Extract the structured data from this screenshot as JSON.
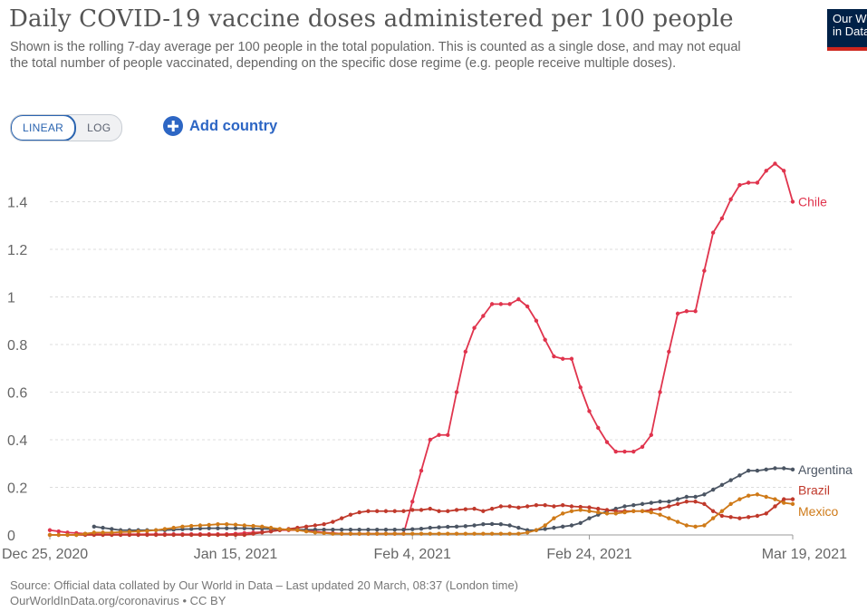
{
  "header": {
    "title": "Daily COVID-19 vaccine doses administered per 100 people",
    "subtitle": "Shown is the rolling 7-day average per 100 people in the total population. This is counted as a single dose, and may not equal the total number of people vaccinated, depending on the specific dose regime (e.g. people receive multiple doses).",
    "logo_line1": "Our World",
    "logo_line2": "in Data"
  },
  "controls": {
    "linear_label": "LINEAR",
    "log_label": "LOG",
    "active_scale": "linear",
    "add_country_label": "Add country",
    "add_icon": "plus-circle-icon"
  },
  "footer": {
    "source_line1": "Source: Official data collated by Our World in Data – Last updated 20 March, 08:37 (London time)",
    "source_line2": "OurWorldInData.org/coronavirus • CC BY"
  },
  "chart_data": {
    "type": "line",
    "title": "Daily COVID-19 vaccine doses administered per 100 people",
    "ylim": [
      0,
      1.6
    ],
    "y_ticks": [
      0,
      0.2,
      0.4,
      0.6,
      0.8,
      1,
      1.2,
      1.4
    ],
    "y_tick_labels": [
      "0",
      "0.2",
      "0.4",
      "0.6",
      "0.8",
      "1",
      "1.2",
      "1.4"
    ],
    "x_tick_labels": [
      "Dec 25, 2020",
      "Jan 15, 2021",
      "Feb 4, 2021",
      "Feb 24, 2021",
      "Mar 19, 2021"
    ],
    "x_tick_days": [
      0,
      21,
      41,
      61,
      84
    ],
    "xlim_days": [
      0,
      84
    ],
    "grid": true,
    "legend": "inline labels at line ends (right)",
    "series": [
      {
        "name": "Chile",
        "color": "#e0344d",
        "start_day": 0,
        "values": [
          0.02,
          0.015,
          0.01,
          0.008,
          0.005,
          0.004,
          0.003,
          0.003,
          0.003,
          0.003,
          0.003,
          0.003,
          0.003,
          0.003,
          0.003,
          0.003,
          0.003,
          0.003,
          0.003,
          0.003,
          0.003,
          0.005,
          0.008,
          0.01,
          0.012,
          0.015,
          0.02,
          0.02,
          0.02,
          0.02,
          0.015,
          0.01,
          0.008,
          0.005,
          0.005,
          0.005,
          0.005,
          0.005,
          0.005,
          0.005,
          0.005,
          0.14,
          0.27,
          0.4,
          0.42,
          0.42,
          0.6,
          0.77,
          0.87,
          0.92,
          0.97,
          0.97,
          0.97,
          0.99,
          0.96,
          0.9,
          0.82,
          0.75,
          0.74,
          0.74,
          0.62,
          0.52,
          0.45,
          0.39,
          0.35,
          0.35,
          0.35,
          0.37,
          0.42,
          0.6,
          0.77,
          0.93,
          0.94,
          0.94,
          1.11,
          1.27,
          1.33,
          1.41,
          1.47,
          1.48,
          1.48,
          1.53,
          1.56,
          1.53,
          1.4
        ]
      },
      {
        "name": "Argentina",
        "color": "#4b5563",
        "start_day": 5,
        "values": [
          0.035,
          0.03,
          0.025,
          0.02,
          0.02,
          0.02,
          0.02,
          0.02,
          0.02,
          0.022,
          0.024,
          0.025,
          0.027,
          0.028,
          0.028,
          0.028,
          0.028,
          0.028,
          0.027,
          0.026,
          0.025,
          0.024,
          0.023,
          0.022,
          0.022,
          0.022,
          0.022,
          0.022,
          0.022,
          0.022,
          0.022,
          0.022,
          0.022,
          0.022,
          0.022,
          0.022,
          0.024,
          0.026,
          0.03,
          0.032,
          0.034,
          0.035,
          0.037,
          0.04,
          0.045,
          0.046,
          0.045,
          0.04,
          0.03,
          0.02,
          0.02,
          0.025,
          0.03,
          0.035,
          0.04,
          0.05,
          0.07,
          0.085,
          0.1,
          0.11,
          0.12,
          0.125,
          0.13,
          0.135,
          0.14,
          0.14,
          0.15,
          0.16,
          0.16,
          0.17,
          0.19,
          0.21,
          0.23,
          0.25,
          0.27,
          0.27,
          0.275,
          0.28,
          0.28,
          0.275
        ]
      },
      {
        "name": "Brazil",
        "color": "#c0392b",
        "start_day": 0,
        "values": [
          0,
          0,
          0,
          0,
          0,
          0,
          0,
          0,
          0,
          0,
          0,
          0,
          0,
          0,
          0,
          0,
          0,
          0,
          0,
          0,
          0,
          0,
          0,
          0.005,
          0.01,
          0.015,
          0.02,
          0.025,
          0.03,
          0.035,
          0.04,
          0.045,
          0.055,
          0.07,
          0.085,
          0.095,
          0.1,
          0.1,
          0.1,
          0.1,
          0.1,
          0.105,
          0.105,
          0.11,
          0.1,
          0.1,
          0.105,
          0.108,
          0.11,
          0.1,
          0.11,
          0.12,
          0.12,
          0.115,
          0.12,
          0.125,
          0.125,
          0.12,
          0.125,
          0.12,
          0.118,
          0.116,
          0.11,
          0.105,
          0.1,
          0.1,
          0.1,
          0.1,
          0.105,
          0.11,
          0.12,
          0.13,
          0.14,
          0.14,
          0.13,
          0.1,
          0.08,
          0.075,
          0.07,
          0.075,
          0.08,
          0.09,
          0.12,
          0.15,
          0.15
        ]
      },
      {
        "name": "Mexico",
        "color": "#cf7a18",
        "start_day": 0,
        "values": [
          0,
          0,
          0,
          0,
          0.005,
          0.01,
          0.01,
          0.01,
          0.012,
          0.013,
          0.015,
          0.017,
          0.02,
          0.025,
          0.03,
          0.035,
          0.038,
          0.04,
          0.042,
          0.045,
          0.045,
          0.043,
          0.04,
          0.038,
          0.035,
          0.03,
          0.025,
          0.022,
          0.02,
          0.015,
          0.01,
          0.008,
          0.005,
          0.005,
          0.005,
          0.005,
          0.005,
          0.005,
          0.005,
          0.005,
          0.005,
          0.005,
          0.005,
          0.005,
          0.005,
          0.005,
          0.005,
          0.005,
          0.005,
          0.005,
          0.005,
          0.005,
          0.005,
          0.005,
          0.01,
          0.02,
          0.04,
          0.07,
          0.09,
          0.1,
          0.105,
          0.1,
          0.095,
          0.09,
          0.09,
          0.095,
          0.1,
          0.1,
          0.095,
          0.085,
          0.07,
          0.055,
          0.04,
          0.035,
          0.04,
          0.07,
          0.1,
          0.13,
          0.15,
          0.165,
          0.17,
          0.16,
          0.15,
          0.135,
          0.13
        ]
      }
    ]
  }
}
